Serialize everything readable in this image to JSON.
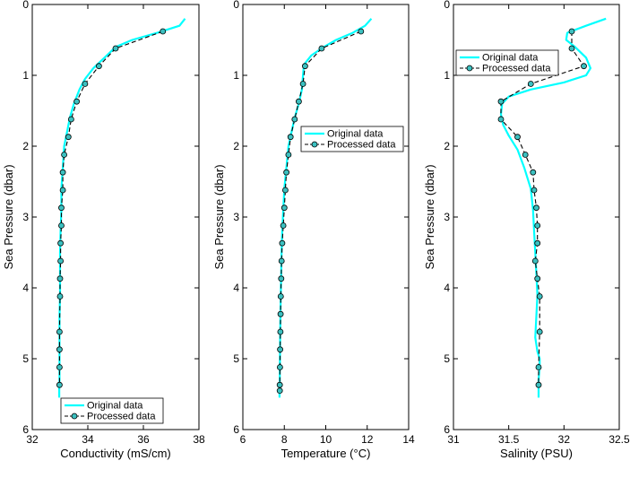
{
  "chart_data": [
    {
      "type": "line",
      "xlabel": "Conductivity (mS/cm)",
      "ylabel": "Sea Pressure (dbar)",
      "xlim": [
        32,
        38
      ],
      "ylim": [
        0,
        6
      ],
      "y_reversed": true,
      "xticks": [
        "32",
        "34",
        "36",
        "38"
      ],
      "yticks": [
        "0",
        "1",
        "2",
        "3",
        "4",
        "5",
        "6"
      ],
      "legend_position": "bottom-right",
      "colors": {
        "original": "#00ffff",
        "processed": "#000000",
        "marker_fill": "#3cc0c0"
      },
      "series": [
        {
          "name": "Original data",
          "style": "solid",
          "x": [
            37.5,
            37.3,
            36.5,
            35.6,
            35.0,
            34.6,
            34.2,
            33.9,
            33.7,
            33.5,
            33.35,
            33.25,
            33.15,
            33.1,
            33.05,
            33.05,
            33.02,
            33.0,
            33.0,
            33.0,
            32.98,
            32.98,
            32.98,
            32.98,
            32.98,
            32.97,
            32.97,
            32.97
          ],
          "y": [
            0.2,
            0.3,
            0.4,
            0.5,
            0.6,
            0.75,
            0.9,
            1.05,
            1.2,
            1.4,
            1.6,
            1.8,
            2.0,
            2.3,
            2.6,
            2.9,
            3.2,
            3.5,
            3.8,
            4.1,
            4.4,
            4.7,
            5.0,
            5.2,
            5.3,
            5.4,
            5.5,
            5.55
          ]
        },
        {
          "name": "Processed data",
          "style": "dashed-circle-markers",
          "x": [
            36.7,
            35.0,
            34.4,
            33.9,
            33.6,
            33.4,
            33.3,
            33.15,
            33.1,
            33.1,
            33.05,
            33.05,
            33.02,
            33.02,
            33.0,
            33.0,
            32.98,
            32.98,
            32.98,
            32.98
          ],
          "y": [
            0.38,
            0.62,
            0.87,
            1.12,
            1.37,
            1.62,
            1.87,
            2.12,
            2.37,
            2.62,
            2.87,
            3.12,
            3.37,
            3.62,
            3.87,
            4.12,
            4.62,
            4.87,
            5.12,
            5.37
          ]
        }
      ]
    },
    {
      "type": "line",
      "xlabel": "Temperature (°C)",
      "ylabel": "Sea Pressure (dbar)",
      "xlim": [
        6,
        14
      ],
      "ylim": [
        0,
        6
      ],
      "y_reversed": true,
      "xticks": [
        "6",
        "8",
        "10",
        "12",
        "14"
      ],
      "yticks": [
        "0",
        "1",
        "2",
        "3",
        "4",
        "5",
        "6"
      ],
      "legend_position": "middle-right",
      "colors": {
        "original": "#00ffff",
        "processed": "#000000",
        "marker_fill": "#3cc0c0"
      },
      "series": [
        {
          "name": "Original data",
          "style": "solid",
          "x": [
            12.2,
            11.9,
            11.3,
            10.5,
            9.9,
            9.3,
            8.95,
            8.9,
            8.85,
            8.7,
            8.5,
            8.35,
            8.2,
            8.1,
            8.0,
            7.95,
            7.9,
            7.87,
            7.85,
            7.83,
            7.81,
            7.8,
            7.79,
            7.78,
            7.78,
            7.77,
            7.77
          ],
          "y": [
            0.2,
            0.3,
            0.4,
            0.5,
            0.6,
            0.72,
            0.85,
            1.0,
            1.2,
            1.4,
            1.6,
            1.8,
            2.0,
            2.3,
            2.6,
            2.9,
            3.2,
            3.5,
            3.8,
            4.1,
            4.4,
            4.7,
            5.0,
            5.2,
            5.35,
            5.45,
            5.55
          ]
        },
        {
          "name": "Processed data",
          "style": "dashed-circle-markers",
          "x": [
            11.7,
            9.8,
            9.0,
            8.9,
            8.7,
            8.5,
            8.3,
            8.2,
            8.1,
            8.05,
            8.0,
            7.95,
            7.9,
            7.87,
            7.85,
            7.83,
            7.82,
            7.81,
            7.8,
            7.79,
            7.78,
            7.78
          ],
          "y": [
            0.38,
            0.62,
            0.87,
            1.12,
            1.37,
            1.62,
            1.87,
            2.12,
            2.37,
            2.62,
            2.87,
            3.12,
            3.37,
            3.62,
            3.87,
            4.12,
            4.37,
            4.62,
            4.87,
            5.12,
            5.37,
            5.45
          ]
        }
      ]
    },
    {
      "type": "line",
      "xlabel": "Salinity (PSU)",
      "ylabel": "Sea Pressure (dbar)",
      "xlim": [
        31,
        32.5
      ],
      "ylim": [
        0,
        6
      ],
      "y_reversed": true,
      "xticks": [
        "31",
        "31.5",
        "32",
        "32.5"
      ],
      "yticks": [
        "0",
        "1",
        "2",
        "3",
        "4",
        "5",
        "6"
      ],
      "legend_position": "top-left",
      "colors": {
        "original": "#00ffff",
        "processed": "#000000",
        "marker_fill": "#3cc0c0"
      },
      "series": [
        {
          "name": "Original data",
          "style": "solid",
          "x": [
            32.38,
            32.2,
            32.03,
            32.02,
            32.1,
            32.2,
            32.24,
            32.2,
            32.0,
            31.7,
            31.5,
            31.44,
            31.43,
            31.45,
            31.5,
            31.58,
            31.64,
            31.7,
            31.72,
            31.73,
            31.74,
            31.75,
            31.76,
            31.75,
            31.74,
            31.76,
            31.78,
            31.78,
            31.77,
            31.77,
            31.77
          ],
          "y": [
            0.2,
            0.3,
            0.4,
            0.5,
            0.6,
            0.75,
            0.9,
            1.0,
            1.1,
            1.2,
            1.3,
            1.4,
            1.55,
            1.7,
            1.85,
            2.05,
            2.3,
            2.6,
            2.9,
            3.2,
            3.5,
            3.8,
            4.1,
            4.4,
            4.7,
            4.9,
            5.0,
            5.1,
            5.3,
            5.45,
            5.55
          ]
        },
        {
          "name": "Processed data",
          "style": "dashed-circle-markers",
          "x": [
            32.07,
            32.07,
            32.18,
            31.7,
            31.43,
            31.43,
            31.58,
            31.65,
            31.72,
            31.73,
            31.75,
            31.76,
            31.76,
            31.74,
            31.76,
            31.78,
            31.78,
            31.77,
            31.77
          ],
          "y": [
            0.38,
            0.62,
            0.87,
            1.12,
            1.37,
            1.62,
            1.87,
            2.12,
            2.37,
            2.62,
            2.87,
            3.12,
            3.37,
            3.62,
            3.87,
            4.12,
            4.62,
            5.12,
            5.37
          ]
        }
      ]
    }
  ]
}
